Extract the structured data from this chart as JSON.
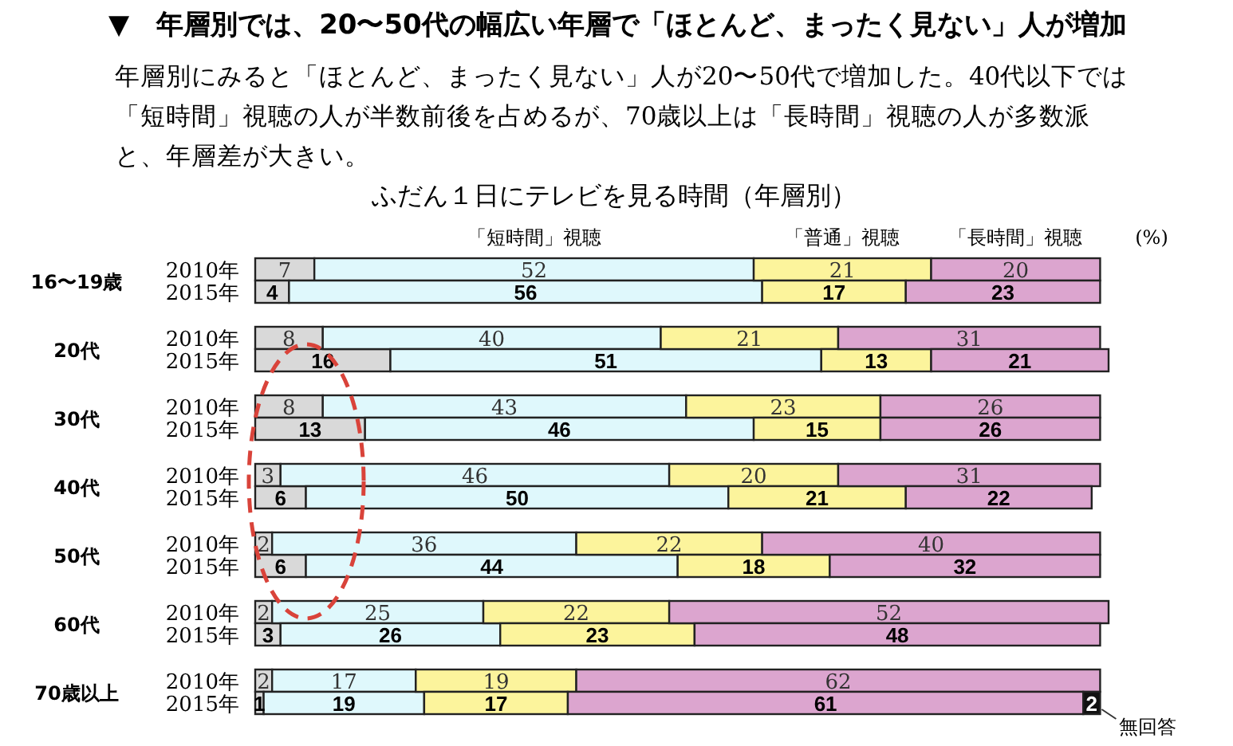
{
  "chart_data": {
    "type": "bar",
    "orientation": "horizontal",
    "stacked": true,
    "data_labels": true,
    "legend": "top",
    "title": "▼　年層別では、20〜50代の幅広い年層で「ほとんど、まったく見ない」人が増加",
    "subtitle": "年層別にみると「ほとんど、まったく見ない」人が20〜50代で増加した。40代以下では「短時間」視聴の人が半数前後を占めるが、70歳以上は「長時間」視聴の人が多数派と、年層差が大きい。",
    "annotations": [
      "ふだん１日にテレビを見る時間（年層別）",
      "(%)",
      "16〜19歳",
      "20代",
      "30代",
      "40代",
      "50代",
      "60代",
      "70歳以上"
    ],
    "xlim": [
      0,
      101
    ],
    "categories": [
      "2010年",
      "2015年",
      "2010年",
      "2015年",
      "2010年",
      "2015年",
      "2010年",
      "2015年",
      "2010年",
      "2015年",
      "2010年",
      "2015年",
      "2010年",
      "2015年"
    ],
    "series": [
      {
        "color": "#d9d9d9",
        "values": [
          7,
          4,
          8,
          16,
          8,
          13,
          3,
          6,
          2,
          6,
          2,
          3,
          2,
          1
        ]
      },
      {
        "name": "「短時間」視聴",
        "color": "#dff8fc",
        "values": [
          52,
          56,
          40,
          51,
          43,
          46,
          46,
          50,
          36,
          44,
          25,
          26,
          17,
          19
        ]
      },
      {
        "name": "「普通」視聴",
        "color": "#fcf49c",
        "values": [
          21,
          17,
          21,
          13,
          23,
          15,
          20,
          21,
          22,
          18,
          22,
          23,
          19,
          17
        ]
      },
      {
        "name": "「長時間」視聴",
        "color": "#dca5cf",
        "values": [
          20,
          23,
          31,
          21,
          26,
          26,
          31,
          22,
          40,
          32,
          52,
          48,
          62,
          61
        ]
      },
      {
        "name": "無回答",
        "color": "#111111",
        "values": [
          null,
          null,
          null,
          null,
          null,
          null,
          null,
          null,
          null,
          null,
          null,
          null,
          null,
          2
        ]
      }
    ]
  }
}
